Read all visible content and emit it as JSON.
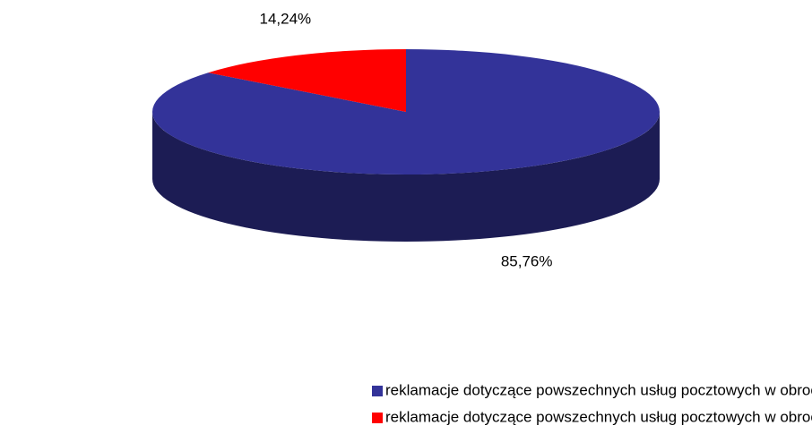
{
  "chart_data": {
    "type": "pie",
    "categories": [
      "reklamacje dotyczące powszechnych usług pocztowych w obrocie krajowym",
      "reklamacje dotyczące powszechnych usług pocztowych w obrocie zagranicznym"
    ],
    "values": [
      85.76,
      14.24
    ],
    "value_labels": [
      "85,76%",
      "14,24%"
    ],
    "colors": [
      "#333399",
      "#ff0000"
    ]
  }
}
